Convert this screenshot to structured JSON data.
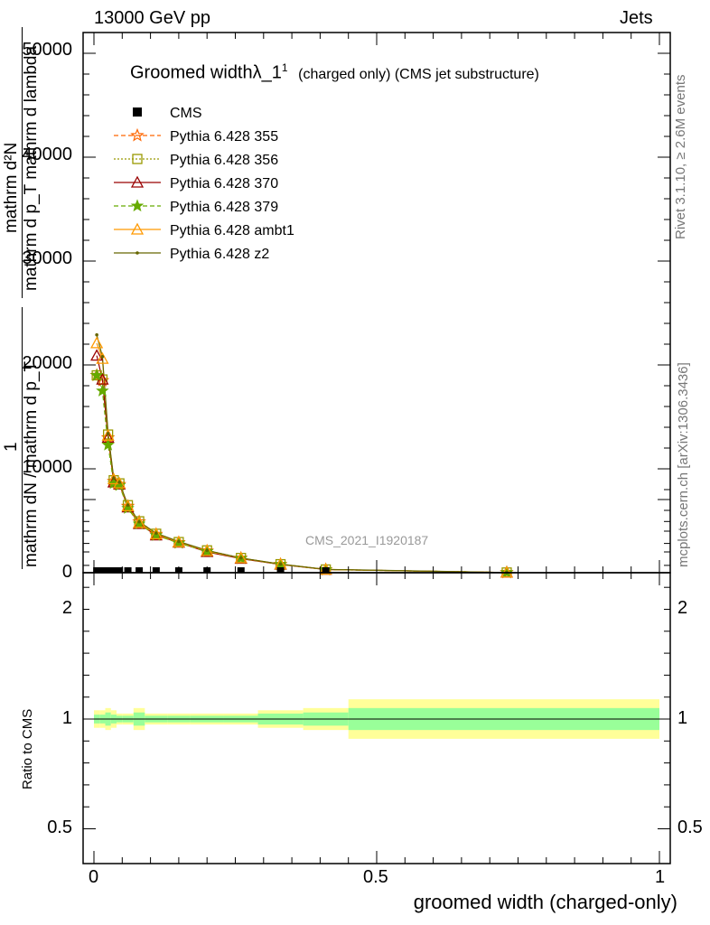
{
  "header": {
    "energy_label": "13000 GeV pp",
    "category_label": "Jets"
  },
  "side_labels": {
    "rivet": "Rivet 3.1.10, ≥ 2.6M events",
    "mcplots": "mcplots.cern.ch [arXiv:1306.3436]"
  },
  "plot_title": {
    "main": "Groomed width",
    "symbol": "λ_1",
    "sup": "1",
    "suffix": "(charged only) (CMS jet substructure)"
  },
  "watermark": "CMS_2021_I1920187",
  "y_label_lines": [
    "mathrm d²N",
    "mathrm d p_T mathrm d lambda",
    "1",
    "mathrm dN / mathrm d p_T"
  ],
  "ratio_ylabel": "Ratio to CMS",
  "xlabel": "groomed width (charged-only)",
  "colors": {
    "data": "#000000",
    "p355": "#ff6600",
    "p356": "#999900",
    "p370": "#990000",
    "p379": "#66aa00",
    "ambt1": "#ff9900",
    "z2": "#666600",
    "band_inner": "#99ff99",
    "band_outer": "#ffff99"
  },
  "chart_data": {
    "type": "line",
    "x_label": "groomed width (charged-only)",
    "xlim": [
      0,
      1
    ],
    "main_ylim": [
      0,
      52000
    ],
    "ratio_ylim": [
      0.4,
      2.3
    ],
    "main_yticks": [
      "0",
      "10000",
      "20000",
      "30000",
      "40000",
      "50000"
    ],
    "ratio_yticks": [
      "0.5",
      "1",
      "2"
    ],
    "x_ticks": [
      "0",
      "0.5",
      "1"
    ],
    "x": [
      0.005,
      0.015,
      0.025,
      0.035,
      0.045,
      0.06,
      0.08,
      0.11,
      0.15,
      0.2,
      0.26,
      0.33,
      0.41,
      0.73
    ],
    "series": [
      {
        "name": "CMS",
        "marker": "square",
        "values": [
          0,
          0,
          0,
          0,
          0,
          0,
          0,
          0,
          0,
          0,
          0,
          0,
          0,
          0
        ]
      },
      {
        "name": "Pythia 6.428 355",
        "marker": "star-open",
        "values": [
          19000,
          18500,
          13000,
          8800,
          8500,
          6400,
          4900,
          3700,
          2900,
          2100,
          1400,
          800,
          300,
          20
        ]
      },
      {
        "name": "Pythia 6.428 356",
        "marker": "square-open",
        "values": [
          19000,
          18600,
          13300,
          8900,
          8600,
          6500,
          4950,
          3750,
          2950,
          2150,
          1420,
          820,
          310,
          20
        ]
      },
      {
        "name": "Pythia 6.428 370",
        "marker": "triangle-open",
        "values": [
          20900,
          18600,
          13000,
          8700,
          8500,
          6300,
          4700,
          3600,
          2900,
          2000,
          1350,
          790,
          300,
          20
        ]
      },
      {
        "name": "Pythia 6.428 379",
        "marker": "star",
        "values": [
          19000,
          17500,
          12300,
          8600,
          8400,
          6200,
          4700,
          3600,
          2850,
          2050,
          1380,
          800,
          300,
          20
        ]
      },
      {
        "name": "Pythia 6.428 ambt1",
        "marker": "triangle-open",
        "values": [
          22100,
          20600,
          13200,
          9000,
          8600,
          6400,
          4800,
          3700,
          2950,
          2100,
          1400,
          820,
          310,
          20
        ]
      },
      {
        "name": "Pythia 6.428 z2",
        "marker": "dot",
        "values": [
          22900,
          20800,
          13400,
          9100,
          8700,
          6500,
          4900,
          3800,
          3000,
          2150,
          1420,
          830,
          320,
          20
        ]
      }
    ],
    "ratio_band": {
      "edges": [
        0,
        0.01,
        0.02,
        0.03,
        0.04,
        0.05,
        0.07,
        0.09,
        0.13,
        0.17,
        0.23,
        0.29,
        0.37,
        0.45,
        1.0
      ],
      "inner": [
        0.02,
        0.02,
        0.03,
        0.02,
        0.015,
        0.015,
        0.03,
        0.015,
        0.015,
        0.015,
        0.015,
        0.025,
        0.03,
        0.05
      ],
      "outer": [
        0.04,
        0.04,
        0.05,
        0.04,
        0.025,
        0.025,
        0.05,
        0.025,
        0.025,
        0.025,
        0.025,
        0.04,
        0.05,
        0.09
      ]
    },
    "grid": false,
    "legend_position": "top-left"
  }
}
